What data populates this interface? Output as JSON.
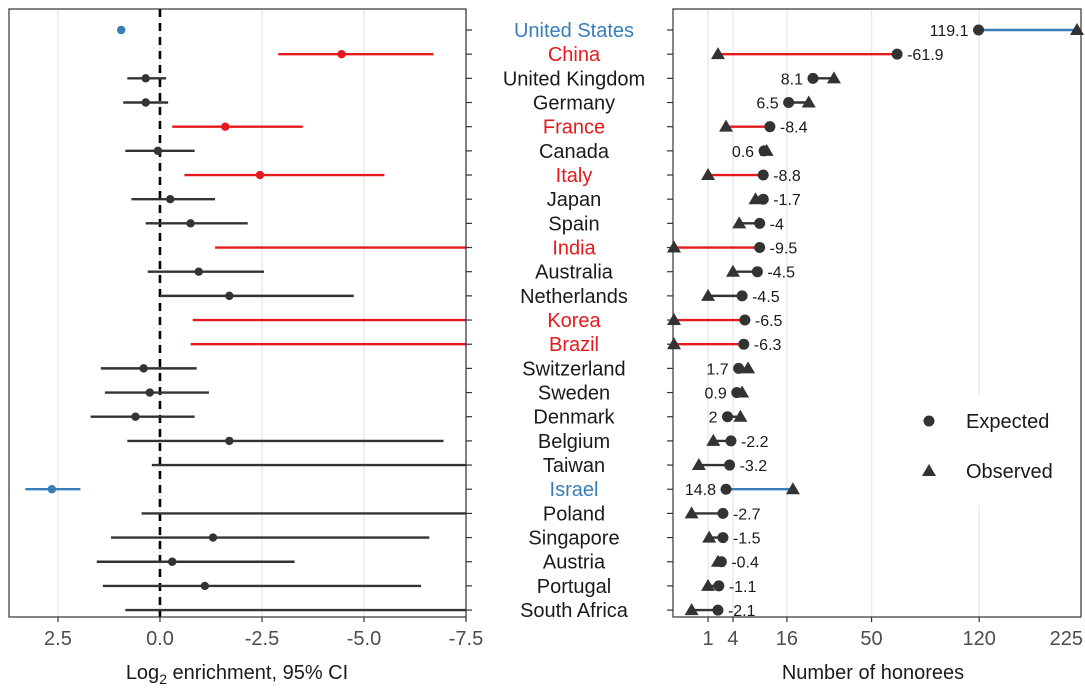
{
  "colors": {
    "red": "#e41a1c",
    "blue": "#377eb8",
    "dark": "#333333",
    "grid": "#ebebeb"
  },
  "chart_data": [
    {
      "type": "forest",
      "xlabel": "Log2 enrichment, 95% CI",
      "xlabel_base": "Log",
      "xlabel_sub": "2",
      "xlabel_rest": " enrichment, 95% CI",
      "x_reversed": true,
      "xlim": [
        3.7,
        -7.5
      ],
      "x_ticks": [
        2.5,
        0.0,
        -2.5,
        -5.0,
        -7.5
      ],
      "x_tick_labels": [
        "2.5",
        "0.0",
        "-2.5",
        "-5.0",
        "-7.5"
      ],
      "reference_line": 0,
      "grid": true,
      "rows": [
        {
          "country": "United States",
          "color": "blue",
          "estimate": 0.95,
          "ci": [
            0.85,
            1.05
          ]
        },
        {
          "country": "China",
          "color": "red",
          "estimate": -4.45,
          "ci": [
            -2.9,
            -6.7
          ]
        },
        {
          "country": "United Kingdom",
          "color": "dark",
          "estimate": 0.35,
          "ci": [
            0.8,
            -0.15
          ]
        },
        {
          "country": "Germany",
          "color": "dark",
          "estimate": 0.35,
          "ci": [
            0.9,
            -0.2
          ]
        },
        {
          "country": "France",
          "color": "red",
          "estimate": -1.6,
          "ci": [
            -0.3,
            -3.5
          ]
        },
        {
          "country": "Canada",
          "color": "dark",
          "estimate": 0.05,
          "ci": [
            0.85,
            -0.85
          ]
        },
        {
          "country": "Italy",
          "color": "red",
          "estimate": -2.45,
          "ci": [
            -0.6,
            -5.5
          ]
        },
        {
          "country": "Japan",
          "color": "dark",
          "estimate": -0.25,
          "ci": [
            0.7,
            -1.35
          ]
        },
        {
          "country": "Spain",
          "color": "dark",
          "estimate": -0.75,
          "ci": [
            0.35,
            -2.15
          ]
        },
        {
          "country": "India",
          "color": "red",
          "estimate": null,
          "ci": [
            -1.35,
            -7.5
          ]
        },
        {
          "country": "Australia",
          "color": "dark",
          "estimate": -0.95,
          "ci": [
            0.3,
            -2.55
          ]
        },
        {
          "country": "Netherlands",
          "color": "dark",
          "estimate": -1.7,
          "ci": [
            0.0,
            -4.75
          ]
        },
        {
          "country": "Korea",
          "color": "red",
          "estimate": null,
          "ci": [
            -0.8,
            -7.5
          ]
        },
        {
          "country": "Brazil",
          "color": "red",
          "estimate": null,
          "ci": [
            -0.75,
            -7.5
          ]
        },
        {
          "country": "Switzerland",
          "color": "dark",
          "estimate": 0.4,
          "ci": [
            1.45,
            -0.9
          ]
        },
        {
          "country": "Sweden",
          "color": "dark",
          "estimate": 0.25,
          "ci": [
            1.35,
            -1.2
          ]
        },
        {
          "country": "Denmark",
          "color": "dark",
          "estimate": 0.6,
          "ci": [
            1.7,
            -0.85
          ]
        },
        {
          "country": "Belgium",
          "color": "dark",
          "estimate": -1.7,
          "ci": [
            0.8,
            -6.95
          ]
        },
        {
          "country": "Taiwan",
          "color": "dark",
          "estimate": null,
          "ci": [
            0.2,
            -7.5
          ]
        },
        {
          "country": "Israel",
          "color": "blue",
          "estimate": 2.65,
          "ci": [
            3.3,
            1.95
          ]
        },
        {
          "country": "Poland",
          "color": "dark",
          "estimate": null,
          "ci": [
            0.45,
            -7.5
          ]
        },
        {
          "country": "Singapore",
          "color": "dark",
          "estimate": -1.3,
          "ci": [
            1.2,
            -6.6
          ]
        },
        {
          "country": "Austria",
          "color": "dark",
          "estimate": -0.3,
          "ci": [
            1.55,
            -3.3
          ]
        },
        {
          "country": "Portugal",
          "color": "dark",
          "estimate": -1.1,
          "ci": [
            1.4,
            -6.4
          ]
        },
        {
          "country": "South Africa",
          "color": "dark",
          "estimate": null,
          "ci": [
            0.85,
            -7.5
          ]
        }
      ]
    },
    {
      "type": "dumbbell",
      "xlabel": "Number of honorees",
      "x_scale": "sqrt",
      "xlim": [
        0,
        235
      ],
      "x_ticks": [
        1,
        4,
        16,
        50,
        120,
        225
      ],
      "x_tick_labels": [
        "1",
        "4",
        "16",
        "50",
        "120",
        "225"
      ],
      "grid": true,
      "legend": {
        "position": "right",
        "entries": [
          {
            "label": "Expected",
            "shape": "circle"
          },
          {
            "label": "Observed",
            "shape": "triangle"
          }
        ]
      },
      "rows": [
        {
          "country": "United States",
          "color": "blue",
          "expected": 119.5,
          "observed": 238.6,
          "label": "119.1"
        },
        {
          "country": "China",
          "color": "red",
          "expected": 63.9,
          "observed": 2.0,
          "label": "-61.9"
        },
        {
          "country": "United Kingdom",
          "color": "dark",
          "expected": 24.5,
          "observed": 32.6,
          "label": "8.1"
        },
        {
          "country": "Germany",
          "color": "dark",
          "expected": 16.5,
          "observed": 23.0,
          "label": "6.5"
        },
        {
          "country": "France",
          "color": "red",
          "expected": 11.4,
          "observed": 3.0,
          "label": "-8.4"
        },
        {
          "country": "Canada",
          "color": "dark",
          "expected": 10.0,
          "observed": 10.6,
          "label": "0.6"
        },
        {
          "country": "Italy",
          "color": "red",
          "expected": 9.8,
          "observed": 1.0,
          "label": "-8.8"
        },
        {
          "country": "Japan",
          "color": "dark",
          "expected": 9.8,
          "observed": 8.1,
          "label": "-1.7"
        },
        {
          "country": "Spain",
          "color": "dark",
          "expected": 9.0,
          "observed": 5.0,
          "label": "-4"
        },
        {
          "country": "India",
          "color": "red",
          "expected": 9.0,
          "observed": -0.5,
          "label": "-9.5"
        },
        {
          "country": "Australia",
          "color": "dark",
          "expected": 8.5,
          "observed": 4.0,
          "label": "-4.5"
        },
        {
          "country": "Netherlands",
          "color": "dark",
          "expected": 5.5,
          "observed": 1.0,
          "label": "-4.5"
        },
        {
          "country": "Korea",
          "color": "red",
          "expected": 6.0,
          "observed": -0.5,
          "label": "-6.5"
        },
        {
          "country": "Brazil",
          "color": "red",
          "expected": 5.8,
          "observed": -0.5,
          "label": "-6.3"
        },
        {
          "country": "Switzerland",
          "color": "dark",
          "expected": 4.9,
          "observed": 6.6,
          "label": "1.7"
        },
        {
          "country": "Sweden",
          "color": "dark",
          "expected": 4.6,
          "observed": 5.5,
          "label": "0.9"
        },
        {
          "country": "Denmark",
          "color": "dark",
          "expected": 3.2,
          "observed": 5.2,
          "label": "2"
        },
        {
          "country": "Belgium",
          "color": "dark",
          "expected": 3.7,
          "observed": 1.5,
          "label": "-2.2"
        },
        {
          "country": "Taiwan",
          "color": "dark",
          "expected": 3.5,
          "observed": 0.3,
          "label": "-3.2"
        },
        {
          "country": "Israel",
          "color": "blue",
          "expected": 3.0,
          "observed": 17.8,
          "label": "14.8"
        },
        {
          "country": "Poland",
          "color": "dark",
          "expected": 2.6,
          "observed": -0.1,
          "label": "-2.7"
        },
        {
          "country": "Singapore",
          "color": "dark",
          "expected": 2.6,
          "observed": 1.1,
          "label": "-1.5"
        },
        {
          "country": "Austria",
          "color": "dark",
          "expected": 2.4,
          "observed": 2.0,
          "label": "-0.4"
        },
        {
          "country": "Portugal",
          "color": "dark",
          "expected": 2.1,
          "observed": 1.0,
          "label": "-1.1"
        },
        {
          "country": "South Africa",
          "color": "dark",
          "expected": 2.0,
          "observed": -0.1,
          "label": "-2.1"
        }
      ]
    }
  ]
}
